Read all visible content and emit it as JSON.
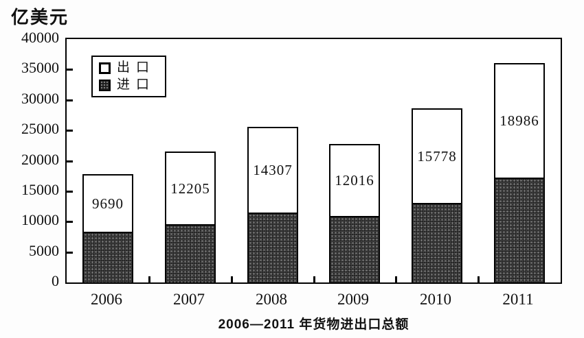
{
  "unit_label": "亿美元",
  "title": "2006—2011 年货物进出口总额",
  "legend": {
    "items": [
      {
        "label": "出口",
        "swatch": "white"
      },
      {
        "label": "进口",
        "swatch": "dark-stipple"
      }
    ]
  },
  "colors": {
    "ink": "#111111",
    "bar_dark": "#1c1c1c",
    "bar_light": "#ffffff",
    "background": "#fdfdfd"
  },
  "chart_data": {
    "type": "bar",
    "stacked": true,
    "title": "2006—2011 年货物进出口总额",
    "unit": "亿美元",
    "categories": [
      "2006",
      "2007",
      "2008",
      "2009",
      "2010",
      "2011"
    ],
    "series": [
      {
        "name": "进口",
        "style": "dark-stipple",
        "labeled_in_figure": false,
        "values": [
          8100,
          9400,
          11300,
          10700,
          12900,
          17000
        ]
      },
      {
        "name": "出口",
        "style": "white",
        "labeled_in_figure": true,
        "values": [
          9690,
          12205,
          14307,
          12016,
          15778,
          18986
        ]
      }
    ],
    "bar_value_labels": [
      "9690",
      "12205",
      "14307",
      "12016",
      "15778",
      "18986"
    ],
    "ylim": [
      0,
      40000
    ],
    "yticks": [
      0,
      5000,
      10000,
      15000,
      20000,
      25000,
      30000,
      35000,
      40000
    ],
    "xlabel": "",
    "ylabel": "亿美元",
    "grid": false,
    "legend_position": "top-left-inside"
  }
}
